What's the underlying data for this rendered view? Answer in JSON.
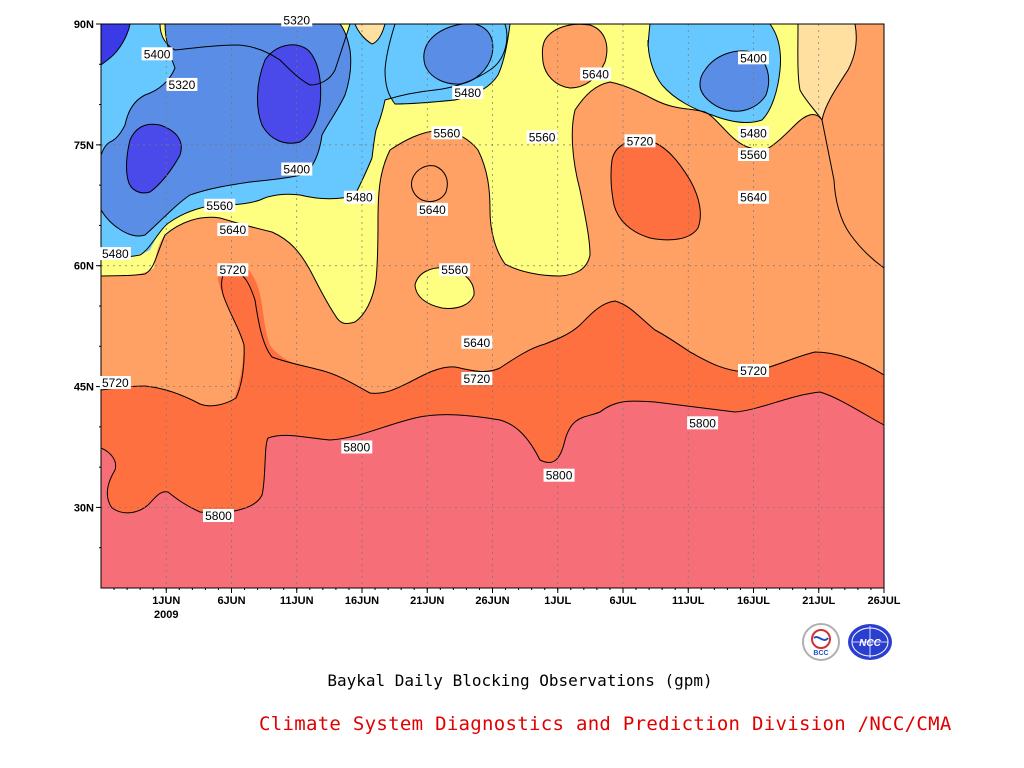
{
  "chart_data": {
    "type": "heatmap",
    "title": "Baykal Daily Blocking Observations (gpm)",
    "xlabel": "",
    "ylabel": "",
    "x_range": [
      "2009-05-27",
      "2009-07-26"
    ],
    "y_range": [
      20,
      90
    ],
    "x_ticks": [
      {
        "label": "1JUN",
        "day": 5
      },
      {
        "label": "6JUN",
        "day": 10
      },
      {
        "label": "11JUN",
        "day": 15
      },
      {
        "label": "16JUN",
        "day": 20
      },
      {
        "label": "21JUN",
        "day": 25
      },
      {
        "label": "26JUN",
        "day": 30
      },
      {
        "label": "1JUL",
        "day": 35
      },
      {
        "label": "6JUL",
        "day": 40
      },
      {
        "label": "11JUL",
        "day": 45
      },
      {
        "label": "16JUL",
        "day": 50
      },
      {
        "label": "21JUL",
        "day": 55
      },
      {
        "label": "26JUL",
        "day": 60
      }
    ],
    "year_label": "2009",
    "y_ticks": [
      {
        "label": "30N",
        "lat": 30
      },
      {
        "label": "45N",
        "lat": 45
      },
      {
        "label": "60N",
        "lat": 60
      },
      {
        "label": "75N",
        "lat": 75
      },
      {
        "label": "90N",
        "lat": 90
      }
    ],
    "contour_levels": [
      5240,
      5320,
      5400,
      5480,
      5560,
      5640,
      5720,
      5800
    ],
    "level_colors": [
      "#3a3ae6",
      "#5050ea",
      "#5a8ee6",
      "#66c8ff",
      "#fefe80",
      "#ffe0a0",
      "#ffa064",
      "#ff7040",
      "#f56e78"
    ],
    "grid": true,
    "contour_labels": [
      {
        "text": "5320",
        "day": 15,
        "lat": 90.5
      },
      {
        "text": "5400",
        "day": 4.3,
        "lat": 86.3
      },
      {
        "text": "5320",
        "day": 6.2,
        "lat": 82.5
      },
      {
        "text": "5400",
        "day": 15,
        "lat": 72.0
      },
      {
        "text": "5480",
        "day": 19.8,
        "lat": 68.5
      },
      {
        "text": "5560",
        "day": 9.1,
        "lat": 67.5
      },
      {
        "text": "5640",
        "day": 10.1,
        "lat": 64.5
      },
      {
        "text": "5720",
        "day": 10.1,
        "lat": 59.5
      },
      {
        "text": "5480",
        "day": 1.1,
        "lat": 61.5
      },
      {
        "text": "5480",
        "day": 28.1,
        "lat": 81.5
      },
      {
        "text": "5560",
        "day": 26.5,
        "lat": 76.5
      },
      {
        "text": "5640",
        "day": 25.4,
        "lat": 67.0
      },
      {
        "text": "5560",
        "day": 27.1,
        "lat": 59.5
      },
      {
        "text": "5560",
        "day": 33.8,
        "lat": 76.0
      },
      {
        "text": "5640",
        "day": 37.9,
        "lat": 83.8
      },
      {
        "text": "5720",
        "day": 41.3,
        "lat": 75.5
      },
      {
        "text": "5400",
        "day": 50.0,
        "lat": 85.8
      },
      {
        "text": "5480",
        "day": 50.0,
        "lat": 76.5
      },
      {
        "text": "5560",
        "day": 50.0,
        "lat": 73.8
      },
      {
        "text": "5640",
        "day": 50.0,
        "lat": 68.5
      },
      {
        "text": "5640",
        "day": 28.8,
        "lat": 50.5
      },
      {
        "text": "5720",
        "day": 28.8,
        "lat": 46.0
      },
      {
        "text": "5720",
        "day": 1.1,
        "lat": 45.5
      },
      {
        "text": "5720",
        "day": 50.0,
        "lat": 47.0
      },
      {
        "text": "5800",
        "day": 19.6,
        "lat": 37.5
      },
      {
        "text": "5800",
        "day": 9.0,
        "lat": 29.0
      },
      {
        "text": "5800",
        "day": 35.1,
        "lat": 34.0
      },
      {
        "text": "5800",
        "day": 46.1,
        "lat": 40.5
      }
    ]
  },
  "footer": "Climate System Diagnostics and Prediction Division /NCC/CMA",
  "logos": [
    {
      "name": "BCC",
      "icon": "bcc-logo"
    },
    {
      "name": "NCC",
      "icon": "ncc-logo"
    }
  ]
}
